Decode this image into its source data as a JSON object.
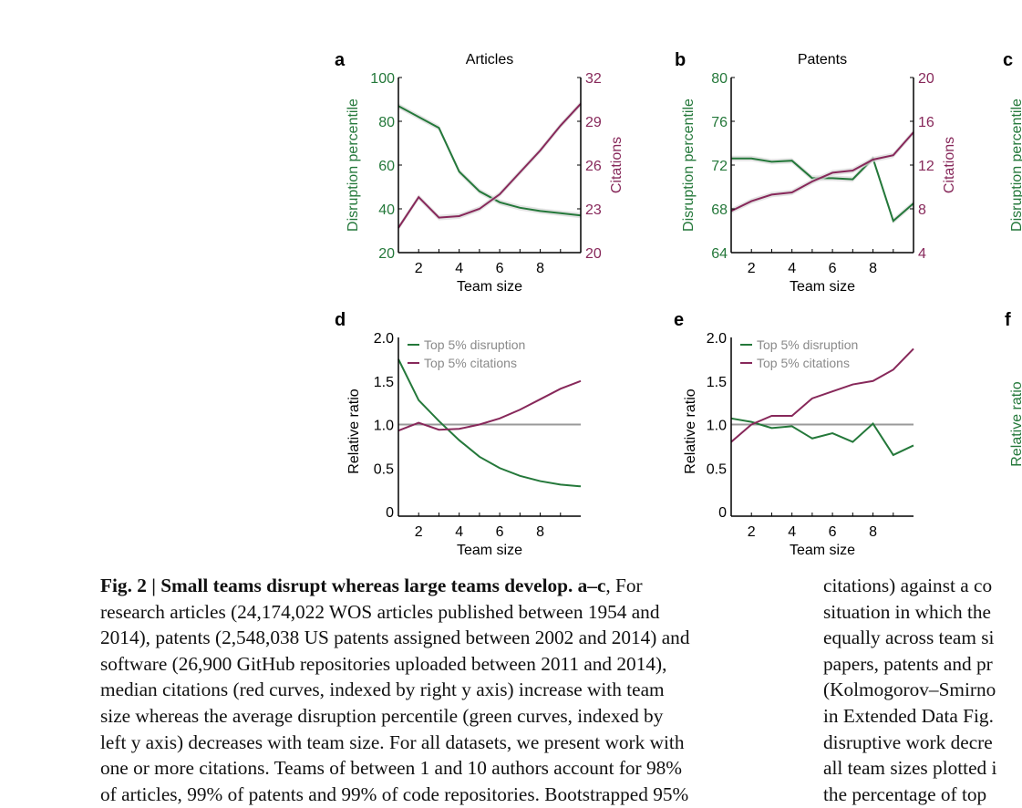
{
  "colors": {
    "disruption": "#24783a",
    "citations": "#87285a",
    "baseline": "#9a9a9a",
    "band": "#d8d8d8",
    "legend_text": "#8a8a8a"
  },
  "chart_data": [
    {
      "panel": "a",
      "type": "line",
      "title": "Articles",
      "xlabel": "Team size",
      "ylabel": "Disruption percentile",
      "y2label": "Citations",
      "x": [
        1,
        2,
        3,
        4,
        5,
        6,
        7,
        8,
        9,
        10
      ],
      "xticks": [
        2,
        4,
        6,
        8
      ],
      "xlim": [
        1,
        10
      ],
      "ylim": [
        20,
        100
      ],
      "yticks": [
        20,
        40,
        60,
        80,
        100
      ],
      "y2lim": [
        20,
        32
      ],
      "y2ticks": [
        20,
        23,
        26,
        29,
        32
      ],
      "series": [
        {
          "axis": "left",
          "color_key": "disruption",
          "values": [
            87,
            82,
            77,
            57,
            48,
            43,
            40.5,
            39,
            38,
            37
          ]
        },
        {
          "axis": "right",
          "color_key": "citations",
          "values": [
            21.7,
            23.8,
            22.4,
            22.5,
            23,
            24,
            25.5,
            27,
            28.7,
            30.2
          ]
        }
      ]
    },
    {
      "panel": "b",
      "type": "line",
      "title": "Patents",
      "xlabel": "Team size",
      "ylabel": "Disruption percentile",
      "y2label": "Citations",
      "x": [
        1,
        2,
        3,
        4,
        5,
        6,
        7,
        8,
        9,
        10
      ],
      "xticks": [
        2,
        4,
        6,
        8
      ],
      "xlim": [
        1,
        10
      ],
      "ylim": [
        64,
        80
      ],
      "yticks": [
        64,
        68,
        72,
        76,
        80
      ],
      "y2lim": [
        4,
        20
      ],
      "y2ticks": [
        4,
        8,
        12,
        16,
        20
      ],
      "series": [
        {
          "axis": "left",
          "color_key": "disruption",
          "values": [
            72.6,
            72.6,
            72.3,
            72.4,
            70.8,
            70.8,
            70.7,
            72.6,
            66.9,
            68.5
          ]
        },
        {
          "axis": "right",
          "color_key": "citations",
          "values": [
            7.8,
            8.7,
            9.3,
            9.5,
            10.5,
            11.3,
            11.5,
            12.5,
            12.9,
            15
          ]
        }
      ]
    },
    {
      "panel": "c",
      "type": "line",
      "ylabel": "Disruption percentile"
    },
    {
      "panel": "d",
      "type": "line",
      "xlabel": "Team size",
      "ylabel": "Relative ratio",
      "x": [
        1,
        2,
        3,
        4,
        5,
        6,
        7,
        8,
        9,
        10
      ],
      "xticks": [
        2,
        4,
        6,
        8
      ],
      "xlim": [
        1,
        10
      ],
      "ylim": [
        0,
        2.0
      ],
      "yticks": [
        0,
        0.5,
        1.0,
        1.5,
        2.0
      ],
      "ytick_labels": [
        "0",
        "0.5",
        "1.0",
        "1.5",
        "2.0"
      ],
      "baseline": 1.0,
      "legend": "top-left",
      "series": [
        {
          "name": "Top 5% disruption",
          "color_key": "disruption",
          "values": [
            1.75,
            1.28,
            1.04,
            0.82,
            0.63,
            0.5,
            0.41,
            0.35,
            0.31,
            0.29
          ]
        },
        {
          "name": "Top 5% citations",
          "color_key": "citations",
          "values": [
            0.93,
            1.02,
            0.94,
            0.95,
            1.0,
            1.07,
            1.17,
            1.29,
            1.41,
            1.5
          ]
        }
      ]
    },
    {
      "panel": "e",
      "type": "line",
      "xlabel": "Team size",
      "ylabel": "Relative ratio",
      "x": [
        1,
        2,
        3,
        4,
        5,
        6,
        7,
        8,
        9,
        10
      ],
      "xticks": [
        2,
        4,
        6,
        8
      ],
      "xlim": [
        1,
        10
      ],
      "ylim": [
        0,
        2.0
      ],
      "yticks": [
        0,
        0.5,
        1.0,
        1.5,
        2.0
      ],
      "ytick_labels": [
        "0",
        "0.5",
        "1.0",
        "1.5",
        "2.0"
      ],
      "baseline": 1.0,
      "legend": "top-left",
      "series": [
        {
          "name": "Top 5% disruption",
          "color_key": "disruption",
          "values": [
            1.07,
            1.03,
            0.96,
            0.98,
            0.84,
            0.9,
            0.8,
            1.01,
            0.65,
            0.76
          ]
        },
        {
          "name": "Top 5% citations",
          "color_key": "citations",
          "values": [
            0.8,
            1.0,
            1.1,
            1.1,
            1.3,
            1.38,
            1.46,
            1.5,
            1.63,
            1.87
          ]
        }
      ]
    },
    {
      "panel": "f",
      "type": "line",
      "ylabel": "Relative ratio"
    }
  ],
  "caption": {
    "left_lines": [
      {
        "bold": "Fig. 2 | Small teams disrupt whereas large teams develop. a–c",
        "text": ", For"
      },
      {
        "text": "research articles (24,174,022 WOS articles published between 1954 and"
      },
      {
        "text": "2014), patents (2,548,038 US patents assigned between 2002 and 2014) and"
      },
      {
        "text": "software (26,900 GitHub repositories uploaded between 2011 and 2014),"
      },
      {
        "text": "median citations (red curves, indexed by right y axis) increase with team"
      },
      {
        "text": "size whereas the average disruption percentile (green curves, indexed by"
      },
      {
        "text": "left y axis) decreases with team size. For all datasets, we present work with"
      },
      {
        "text": "one or more citations. Teams of between 1 and 10 authors account for 98%"
      },
      {
        "text": "of articles, 99% of patents and 99% of code repositories. Bootstrapped 95%"
      }
    ],
    "right_lines": [
      "citations) against a co",
      "situation in which the",
      "equally across team si",
      "papers, patents and pr",
      "(Kolmogorov–Smirno",
      "in Extended Data Fig.",
      "disruptive work decre",
      "all team sizes plotted i",
      "the percentage of top"
    ]
  }
}
